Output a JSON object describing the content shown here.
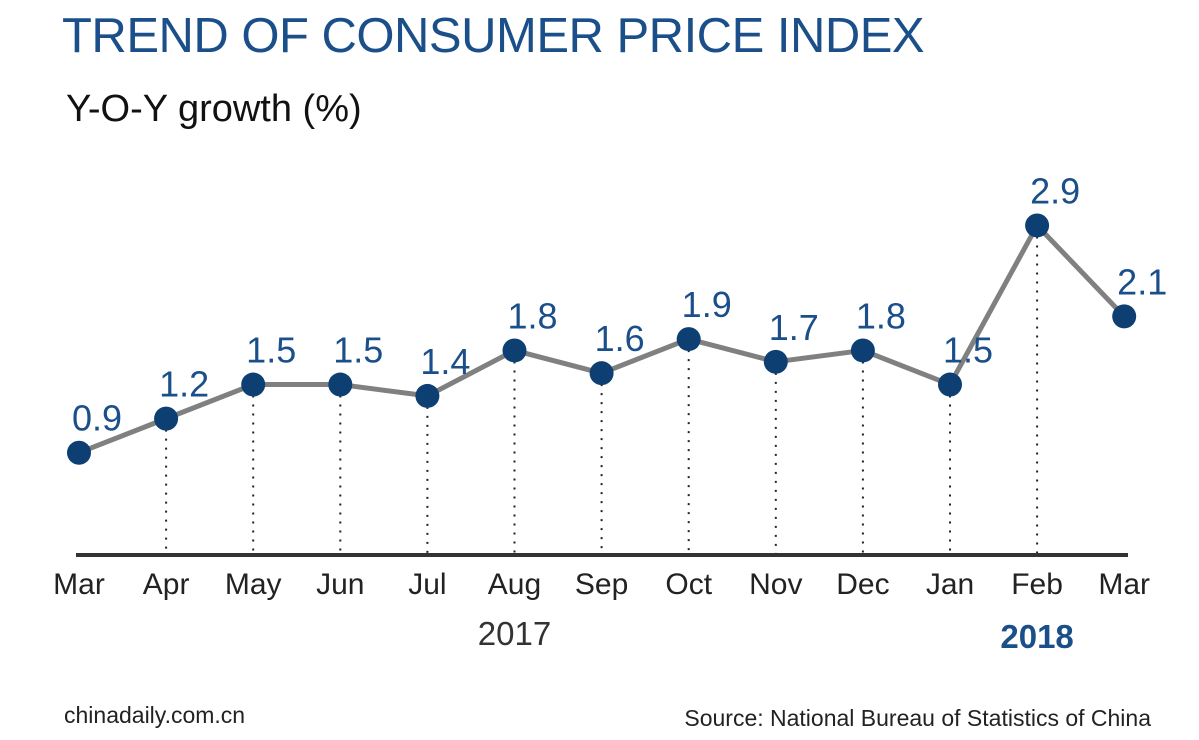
{
  "header": {
    "title": "TREND OF CONSUMER PRICE INDEX",
    "subtitle": "Y-O-Y growth (%)"
  },
  "footer": {
    "credit": "chinadaily.com.cn",
    "source": "Source: National Bureau of Statistics of China"
  },
  "chart_data": {
    "type": "line",
    "title": "TREND OF CONSUMER PRICE INDEX",
    "ylabel": "Y-O-Y growth (%)",
    "categories": [
      "Mar",
      "Apr",
      "May",
      "Jun",
      "Jul",
      "Aug",
      "Sep",
      "Oct",
      "Nov",
      "Dec",
      "Jan",
      "Feb",
      "Mar"
    ],
    "values": [
      0.9,
      1.2,
      1.5,
      1.5,
      1.4,
      1.8,
      1.6,
      1.9,
      1.7,
      1.8,
      1.5,
      2.9,
      2.1
    ],
    "data_labels": [
      "0.9",
      "1.2",
      "1.5",
      "1.5",
      "1.4",
      "1.8",
      "1.6",
      "1.9",
      "1.7",
      "1.8",
      "1.5",
      "2.9",
      "2.1"
    ],
    "year_labels": [
      {
        "text": "2017",
        "bold": false
      },
      {
        "text": "2018",
        "bold": true
      }
    ],
    "ylim": [
      0,
      3.3
    ],
    "grid": false,
    "legend": "none",
    "colors": {
      "line": "#808080",
      "marker": "#0d3f73",
      "label": "#1b4f8a",
      "axis": "#333333",
      "leader": "#222222",
      "tick_text": "#222222",
      "year_2017": "#333333",
      "year_2018": "#1b4f8a"
    }
  }
}
